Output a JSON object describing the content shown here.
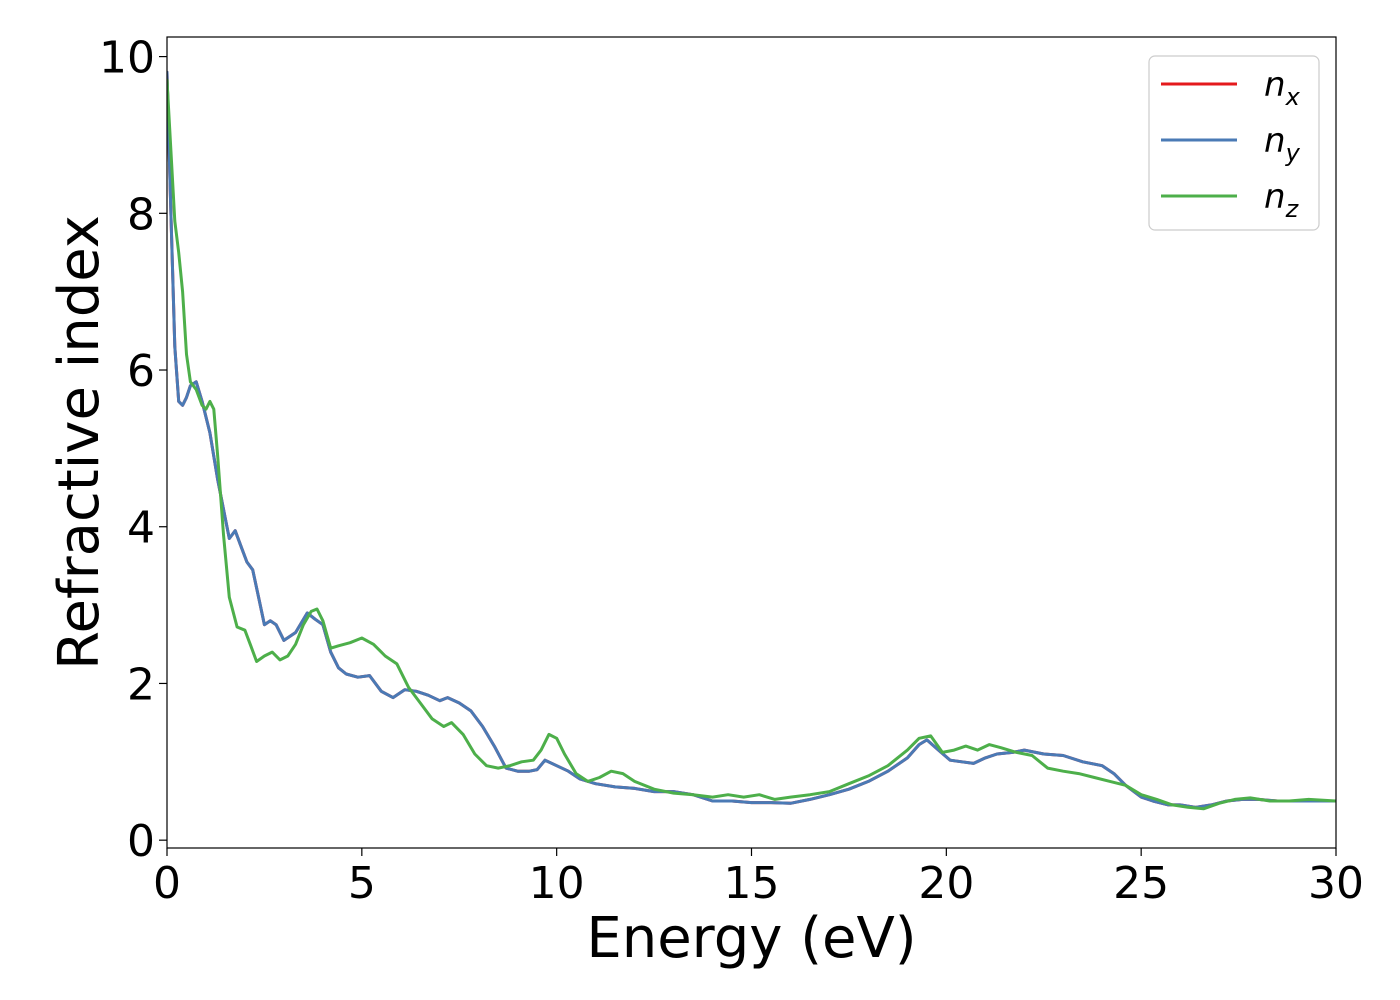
{
  "chart_data": {
    "type": "line",
    "title": "",
    "xlabel": "Energy (eV)",
    "ylabel": "Refractive index",
    "xlim": [
      0,
      30
    ],
    "ylim": [
      -0.1,
      10.25
    ],
    "xticks": [
      0,
      5,
      10,
      15,
      20,
      25,
      30
    ],
    "yticks": [
      0,
      2,
      4,
      6,
      8,
      10
    ],
    "grid": false,
    "legend_position": "top-right",
    "series": [
      {
        "name": "n_x",
        "base": "n",
        "sub": "x",
        "color": "#e41a1c",
        "x": [
          0,
          0.1,
          0.2,
          0.3,
          0.4,
          0.5,
          0.6,
          0.75,
          0.9,
          1.1,
          1.3,
          1.5,
          1.6,
          1.75,
          1.9,
          2.05,
          2.2,
          2.35,
          2.5,
          2.65,
          2.8,
          3.0,
          3.3,
          3.6,
          3.8,
          4.0,
          4.2,
          4.4,
          4.6,
          4.9,
          5.2,
          5.5,
          5.8,
          6.1,
          6.4,
          6.7,
          7.0,
          7.2,
          7.5,
          7.8,
          8.1,
          8.4,
          8.7,
          9.0,
          9.3,
          9.5,
          9.7,
          10.0,
          10.3,
          10.6,
          11.0,
          11.5,
          12.0,
          12.5,
          13.0,
          13.5,
          14.0,
          14.5,
          15.0,
          15.5,
          16.0,
          16.5,
          17.0,
          17.5,
          18.0,
          18.5,
          19.0,
          19.3,
          19.5,
          19.8,
          20.1,
          20.4,
          20.7,
          21.0,
          21.3,
          21.7,
          22.0,
          22.5,
          23.0,
          23.5,
          24.0,
          24.3,
          24.6,
          25.0,
          25.3,
          25.7,
          26.0,
          26.4,
          26.8,
          27.2,
          27.6,
          28.0,
          28.5,
          29.0,
          29.5,
          30.0
        ],
        "y": [
          9.8,
          8.0,
          6.3,
          5.6,
          5.55,
          5.65,
          5.8,
          5.85,
          5.6,
          5.2,
          4.6,
          4.1,
          3.85,
          3.95,
          3.75,
          3.55,
          3.45,
          3.1,
          2.75,
          2.8,
          2.75,
          2.55,
          2.65,
          2.9,
          2.82,
          2.75,
          2.4,
          2.2,
          2.12,
          2.08,
          2.1,
          1.9,
          1.82,
          1.92,
          1.9,
          1.85,
          1.78,
          1.82,
          1.75,
          1.65,
          1.45,
          1.2,
          0.92,
          0.88,
          0.88,
          0.9,
          1.02,
          0.95,
          0.88,
          0.78,
          0.72,
          0.68,
          0.66,
          0.62,
          0.62,
          0.58,
          0.5,
          0.5,
          0.48,
          0.48,
          0.47,
          0.52,
          0.58,
          0.65,
          0.75,
          0.88,
          1.05,
          1.22,
          1.28,
          1.15,
          1.02,
          1.0,
          0.98,
          1.05,
          1.1,
          1.12,
          1.15,
          1.1,
          1.08,
          1.0,
          0.95,
          0.85,
          0.7,
          0.55,
          0.5,
          0.45,
          0.45,
          0.42,
          0.45,
          0.5,
          0.52,
          0.52,
          0.5,
          0.5,
          0.5,
          0.5
        ]
      },
      {
        "name": "n_y",
        "base": "n",
        "sub": "y",
        "color": "#4a7ab5",
        "x": [
          0,
          0.1,
          0.2,
          0.3,
          0.4,
          0.5,
          0.6,
          0.75,
          0.9,
          1.1,
          1.3,
          1.5,
          1.6,
          1.75,
          1.9,
          2.05,
          2.2,
          2.35,
          2.5,
          2.65,
          2.8,
          3.0,
          3.3,
          3.6,
          3.8,
          4.0,
          4.2,
          4.4,
          4.6,
          4.9,
          5.2,
          5.5,
          5.8,
          6.1,
          6.4,
          6.7,
          7.0,
          7.2,
          7.5,
          7.8,
          8.1,
          8.4,
          8.7,
          9.0,
          9.3,
          9.5,
          9.7,
          10.0,
          10.3,
          10.6,
          11.0,
          11.5,
          12.0,
          12.5,
          13.0,
          13.5,
          14.0,
          14.5,
          15.0,
          15.5,
          16.0,
          16.5,
          17.0,
          17.5,
          18.0,
          18.5,
          19.0,
          19.3,
          19.5,
          19.8,
          20.1,
          20.4,
          20.7,
          21.0,
          21.3,
          21.7,
          22.0,
          22.5,
          23.0,
          23.5,
          24.0,
          24.3,
          24.6,
          25.0,
          25.3,
          25.7,
          26.0,
          26.4,
          26.8,
          27.2,
          27.6,
          28.0,
          28.5,
          29.0,
          29.5,
          30.0
        ],
        "y": [
          9.8,
          8.0,
          6.3,
          5.6,
          5.55,
          5.65,
          5.8,
          5.85,
          5.6,
          5.2,
          4.6,
          4.1,
          3.85,
          3.95,
          3.75,
          3.55,
          3.45,
          3.1,
          2.75,
          2.8,
          2.75,
          2.55,
          2.65,
          2.9,
          2.82,
          2.75,
          2.4,
          2.2,
          2.12,
          2.08,
          2.1,
          1.9,
          1.82,
          1.92,
          1.9,
          1.85,
          1.78,
          1.82,
          1.75,
          1.65,
          1.45,
          1.2,
          0.92,
          0.88,
          0.88,
          0.9,
          1.02,
          0.95,
          0.88,
          0.78,
          0.72,
          0.68,
          0.66,
          0.62,
          0.62,
          0.58,
          0.5,
          0.5,
          0.48,
          0.48,
          0.47,
          0.52,
          0.58,
          0.65,
          0.75,
          0.88,
          1.05,
          1.22,
          1.28,
          1.15,
          1.02,
          1.0,
          0.98,
          1.05,
          1.1,
          1.12,
          1.15,
          1.1,
          1.08,
          1.0,
          0.95,
          0.85,
          0.7,
          0.55,
          0.5,
          0.45,
          0.45,
          0.42,
          0.45,
          0.5,
          0.52,
          0.52,
          0.5,
          0.5,
          0.5,
          0.5
        ]
      },
      {
        "name": "n_z",
        "base": "n",
        "sub": "z",
        "color": "#4daf4a",
        "x": [
          0,
          0.1,
          0.2,
          0.3,
          0.4,
          0.5,
          0.6,
          0.75,
          0.9,
          1.0,
          1.1,
          1.2,
          1.3,
          1.45,
          1.6,
          1.8,
          2.0,
          2.15,
          2.3,
          2.5,
          2.7,
          2.9,
          3.1,
          3.3,
          3.5,
          3.7,
          3.85,
          4.0,
          4.2,
          4.4,
          4.7,
          5.0,
          5.3,
          5.6,
          5.9,
          6.2,
          6.5,
          6.8,
          7.1,
          7.3,
          7.6,
          7.9,
          8.2,
          8.5,
          8.8,
          9.1,
          9.4,
          9.6,
          9.8,
          10.0,
          10.2,
          10.5,
          10.8,
          11.1,
          11.4,
          11.7,
          12.0,
          12.5,
          13.0,
          13.5,
          14.0,
          14.4,
          14.8,
          15.2,
          15.6,
          16.0,
          16.5,
          17.0,
          17.5,
          18.0,
          18.5,
          19.0,
          19.3,
          19.6,
          19.9,
          20.2,
          20.5,
          20.8,
          21.1,
          21.4,
          21.8,
          22.2,
          22.6,
          23.0,
          23.4,
          23.8,
          24.2,
          24.6,
          25.0,
          25.4,
          25.8,
          26.2,
          26.6,
          27.0,
          27.4,
          27.8,
          28.3,
          28.8,
          29.3,
          30.0
        ],
        "y": [
          9.7,
          8.8,
          7.9,
          7.5,
          7.0,
          6.2,
          5.85,
          5.75,
          5.55,
          5.5,
          5.6,
          5.5,
          4.9,
          3.9,
          3.1,
          2.72,
          2.68,
          2.48,
          2.28,
          2.35,
          2.4,
          2.3,
          2.35,
          2.5,
          2.75,
          2.92,
          2.95,
          2.8,
          2.45,
          2.48,
          2.52,
          2.58,
          2.5,
          2.35,
          2.25,
          1.95,
          1.75,
          1.55,
          1.45,
          1.5,
          1.35,
          1.1,
          0.95,
          0.92,
          0.95,
          1.0,
          1.02,
          1.15,
          1.35,
          1.3,
          1.1,
          0.85,
          0.75,
          0.8,
          0.88,
          0.85,
          0.75,
          0.65,
          0.6,
          0.58,
          0.55,
          0.58,
          0.55,
          0.58,
          0.52,
          0.55,
          0.58,
          0.62,
          0.72,
          0.82,
          0.95,
          1.15,
          1.3,
          1.33,
          1.12,
          1.15,
          1.2,
          1.15,
          1.22,
          1.18,
          1.12,
          1.08,
          0.92,
          0.88,
          0.85,
          0.8,
          0.75,
          0.7,
          0.58,
          0.52,
          0.45,
          0.42,
          0.4,
          0.47,
          0.52,
          0.54,
          0.5,
          0.5,
          0.52,
          0.5
        ]
      }
    ]
  }
}
